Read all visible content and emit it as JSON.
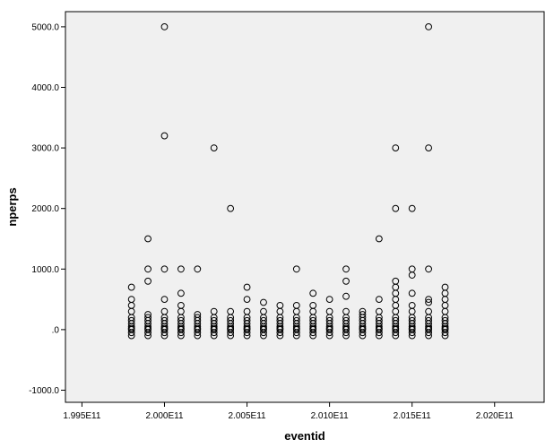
{
  "chart_data": {
    "type": "scatter",
    "xlabel": "eventid",
    "ylabel": "nperps",
    "xlim": [
      199400000000,
      202300000000
    ],
    "ylim": [
      -1200,
      5250
    ],
    "xticks": [
      {
        "value": 199500000000,
        "label": "1.995E11"
      },
      {
        "value": 200000000000,
        "label": "2.000E11"
      },
      {
        "value": 200500000000,
        "label": "2.005E11"
      },
      {
        "value": 201000000000,
        "label": "2.010E11"
      },
      {
        "value": 201500000000,
        "label": "2.015E11"
      },
      {
        "value": 202000000000,
        "label": "2.020E11"
      }
    ],
    "yticks": [
      {
        "value": -1000,
        "label": "-1000.0"
      },
      {
        "value": 0,
        "label": ".0"
      },
      {
        "value": 1000,
        "label": "1000.0"
      },
      {
        "value": 2000,
        "label": "2000.0"
      },
      {
        "value": 3000,
        "label": "3000.0"
      },
      {
        "value": 4000,
        "label": "4000.0"
      },
      {
        "value": 5000,
        "label": "5000.0"
      }
    ],
    "grid": false,
    "marker": "open-circle",
    "colors": {
      "plot_bg": "#f0f0f0",
      "marker": "#000000",
      "axis": "#000000"
    },
    "clusters_x": [
      199800000000,
      199900000000,
      200000000000,
      200100000000,
      200200000000,
      200300000000,
      200400000000,
      200500000000,
      200600000000,
      200700000000,
      200800000000,
      200900000000,
      201000000000,
      201100000000,
      201200000000,
      201300000000,
      201400000000,
      201500000000,
      201600000000,
      201700000000
    ],
    "cluster_base_values": [
      -99,
      -50,
      0,
      20,
      50,
      100,
      150,
      200
    ],
    "points": [
      {
        "x": 199800000000,
        "y": 300
      },
      {
        "x": 199800000000,
        "y": 400
      },
      {
        "x": 199800000000,
        "y": 500
      },
      {
        "x": 199800000000,
        "y": 700
      },
      {
        "x": 199900000000,
        "y": 250
      },
      {
        "x": 199900000000,
        "y": 800
      },
      {
        "x": 199900000000,
        "y": 1000
      },
      {
        "x": 199900000000,
        "y": 1500
      },
      {
        "x": 200000000000,
        "y": 300
      },
      {
        "x": 200000000000,
        "y": 500
      },
      {
        "x": 200000000000,
        "y": 1000
      },
      {
        "x": 200000000000,
        "y": 3200
      },
      {
        "x": 200000000000,
        "y": 5000
      },
      {
        "x": 200100000000,
        "y": 300
      },
      {
        "x": 200100000000,
        "y": 400
      },
      {
        "x": 200100000000,
        "y": 600
      },
      {
        "x": 200100000000,
        "y": 1000
      },
      {
        "x": 200200000000,
        "y": 250
      },
      {
        "x": 200200000000,
        "y": 1000
      },
      {
        "x": 200300000000,
        "y": 300
      },
      {
        "x": 200300000000,
        "y": 3000
      },
      {
        "x": 200400000000,
        "y": 300
      },
      {
        "x": 200400000000,
        "y": 2000
      },
      {
        "x": 200500000000,
        "y": 300
      },
      {
        "x": 200500000000,
        "y": 500
      },
      {
        "x": 200500000000,
        "y": 700
      },
      {
        "x": 200600000000,
        "y": 300
      },
      {
        "x": 200600000000,
        "y": 450
      },
      {
        "x": 200700000000,
        "y": 300
      },
      {
        "x": 200700000000,
        "y": 400
      },
      {
        "x": 200800000000,
        "y": 300
      },
      {
        "x": 200800000000,
        "y": 400
      },
      {
        "x": 200800000000,
        "y": 1000
      },
      {
        "x": 200900000000,
        "y": 300
      },
      {
        "x": 200900000000,
        "y": 400
      },
      {
        "x": 200900000000,
        "y": 600
      },
      {
        "x": 201000000000,
        "y": 300
      },
      {
        "x": 201000000000,
        "y": 500
      },
      {
        "x": 201100000000,
        "y": 300
      },
      {
        "x": 201100000000,
        "y": 550
      },
      {
        "x": 201100000000,
        "y": 800
      },
      {
        "x": 201100000000,
        "y": 1000
      },
      {
        "x": 201200000000,
        "y": 250
      },
      {
        "x": 201200000000,
        "y": 300
      },
      {
        "x": 201300000000,
        "y": 300
      },
      {
        "x": 201300000000,
        "y": 500
      },
      {
        "x": 201300000000,
        "y": 1500
      },
      {
        "x": 201400000000,
        "y": 300
      },
      {
        "x": 201400000000,
        "y": 400
      },
      {
        "x": 201400000000,
        "y": 500
      },
      {
        "x": 201400000000,
        "y": 600
      },
      {
        "x": 201400000000,
        "y": 700
      },
      {
        "x": 201400000000,
        "y": 800
      },
      {
        "x": 201400000000,
        "y": 2000
      },
      {
        "x": 201400000000,
        "y": 3000
      },
      {
        "x": 201500000000,
        "y": 300
      },
      {
        "x": 201500000000,
        "y": 400
      },
      {
        "x": 201500000000,
        "y": 600
      },
      {
        "x": 201500000000,
        "y": 900
      },
      {
        "x": 201500000000,
        "y": 1000
      },
      {
        "x": 201500000000,
        "y": 2000
      },
      {
        "x": 201600000000,
        "y": 300
      },
      {
        "x": 201600000000,
        "y": 450
      },
      {
        "x": 201600000000,
        "y": 500
      },
      {
        "x": 201600000000,
        "y": 1000
      },
      {
        "x": 201600000000,
        "y": 3000
      },
      {
        "x": 201600000000,
        "y": 5000
      },
      {
        "x": 201700000000,
        "y": 300
      },
      {
        "x": 201700000000,
        "y": 400
      },
      {
        "x": 201700000000,
        "y": 500
      },
      {
        "x": 201700000000,
        "y": 600
      },
      {
        "x": 201700000000,
        "y": 700
      }
    ]
  }
}
